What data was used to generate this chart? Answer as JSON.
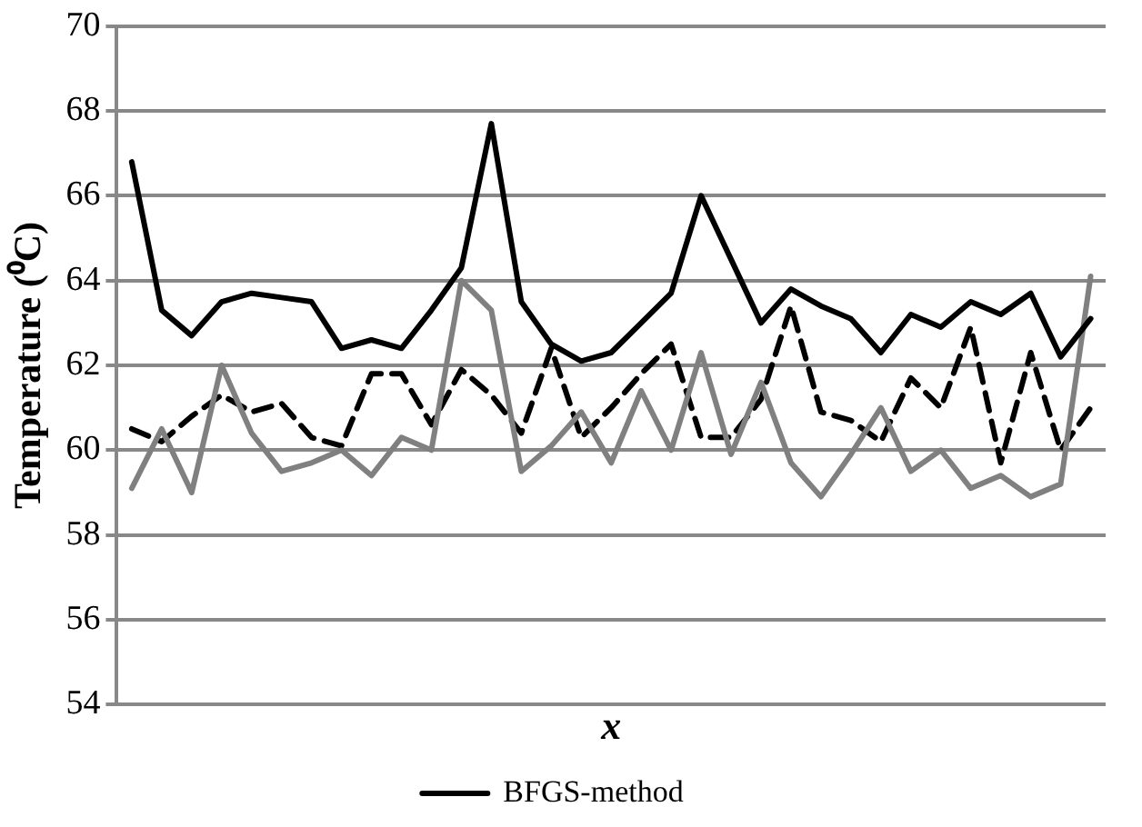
{
  "chart_data": {
    "type": "line",
    "xlabel": "x",
    "ylabel": "Temperature (⁰C)",
    "categories": [
      null,
      null,
      null,
      null,
      null,
      null,
      null,
      null,
      null,
      null,
      null,
      null,
      null,
      null,
      null,
      null,
      null,
      null,
      null,
      null,
      null,
      null,
      null,
      null,
      null,
      null,
      null,
      null,
      null,
      null,
      null,
      null,
      null
    ],
    "series": [
      {
        "name": "BFGS-method",
        "color": "#000000",
        "line_style": "solid",
        "values": [
          66.8,
          63.3,
          62.7,
          63.5,
          63.7,
          63.6,
          63.5,
          62.4,
          62.6,
          62.4,
          63.3,
          64.3,
          67.7,
          63.5,
          62.5,
          62.1,
          62.3,
          63.0,
          63.7,
          66.0,
          64.5,
          63.0,
          63.8,
          63.4,
          63.1,
          62.3,
          63.2,
          62.9,
          63.5,
          63.2,
          63.7,
          62.2,
          63.1
        ]
      },
      {
        "color": "#808080",
        "line_style": "solid",
        "values": [
          59.1,
          60.5,
          59.0,
          62.0,
          60.4,
          59.5,
          59.7,
          60.0,
          59.4,
          60.3,
          60.0,
          64.0,
          63.3,
          59.5,
          60.1,
          60.9,
          59.7,
          61.4,
          60.0,
          62.3,
          59.9,
          61.6,
          59.7,
          58.9,
          59.9,
          61.0,
          59.5,
          60.0,
          59.1,
          59.4,
          58.9,
          59.2,
          64.1
        ]
      },
      {
        "color": "#000000",
        "line_style": "dashed",
        "values": [
          60.5,
          60.2,
          60.8,
          61.3,
          60.9,
          61.1,
          60.3,
          60.1,
          61.8,
          61.8,
          60.6,
          61.9,
          61.3,
          60.4,
          62.4,
          60.3,
          61.0,
          61.8,
          62.5,
          60.3,
          60.3,
          61.2,
          63.4,
          60.9,
          60.7,
          60.2,
          61.7,
          61.0,
          62.9,
          59.7,
          62.3,
          60.0,
          61.0
        ]
      }
    ],
    "ylim": [
      54,
      70
    ],
    "yticks": [
      54,
      56,
      58,
      60,
      62,
      64,
      66,
      68,
      70
    ],
    "grid": "y",
    "legend": "bottom",
    "tick_labels": "y",
    "marker": "none"
  }
}
